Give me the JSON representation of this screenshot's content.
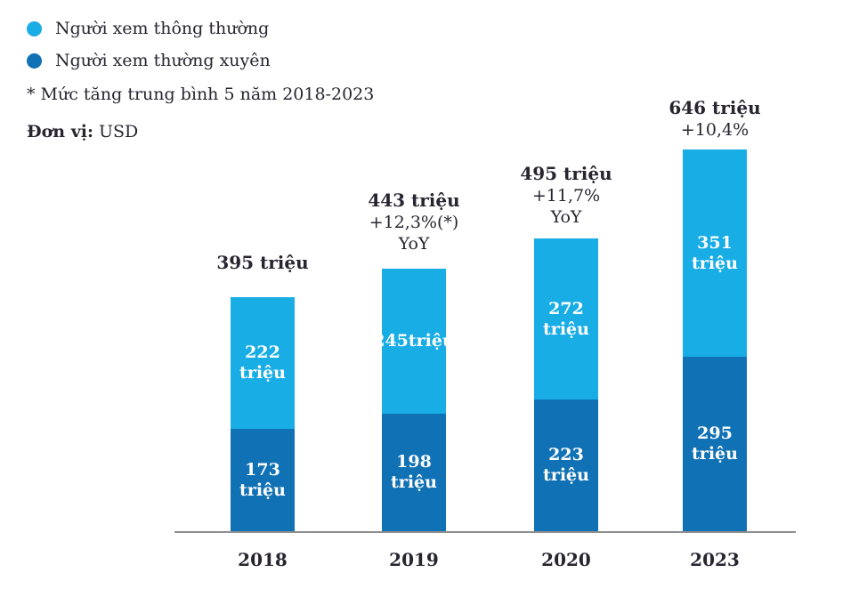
{
  "legend": {
    "items": [
      {
        "label": "Người xem thông thường",
        "color": "#19ade6"
      },
      {
        "label": "Người xem thường xuyên",
        "color": "#1071b5"
      }
    ]
  },
  "note": "* Mức tăng trung bình 5 năm 2018-2023",
  "unit": {
    "label_bold": "Đơn vị:",
    "value": " USD"
  },
  "colors": {
    "light_blue": "#19ade6",
    "dark_blue": "#1071b5",
    "text_dark": "#282530",
    "axis_gray": "#8f8f8f",
    "bar_label_white": "#ffffff"
  },
  "chart_data": {
    "type": "bar",
    "stacked": true,
    "grid": false,
    "legend_position": "top-left",
    "xlabel": "",
    "ylabel": "",
    "value_unit": "triệu USD",
    "categories": [
      "2018",
      "2019",
      "2020",
      "2023"
    ],
    "series": [
      {
        "name": "Người xem thường xuyên",
        "color": "#1071b5",
        "values": [
          173,
          198,
          223,
          295
        ],
        "labels": [
          [
            "173",
            "triệu"
          ],
          [
            "198",
            "triệu"
          ],
          [
            "223",
            "triệu"
          ],
          [
            "295",
            "triệu"
          ]
        ]
      },
      {
        "name": "Người xem thông thường",
        "color": "#19ade6",
        "values": [
          222,
          245,
          272,
          351
        ],
        "labels": [
          [
            "222",
            "triệu"
          ],
          [
            "245triệu"
          ],
          [
            "272",
            "triệu"
          ],
          [
            "351",
            "triệu"
          ]
        ]
      }
    ],
    "totals": [
      395,
      443,
      495,
      646
    ],
    "annotations": [
      {
        "total": "395 triệu",
        "lines": []
      },
      {
        "total": "443 triệu",
        "lines": [
          "+12,3%(*)",
          "YoY"
        ]
      },
      {
        "total": "495 triệu",
        "lines": [
          "+11,7%",
          "YoY"
        ]
      },
      {
        "total": "646 triệu",
        "lines": [
          "+10,4%"
        ]
      }
    ]
  }
}
